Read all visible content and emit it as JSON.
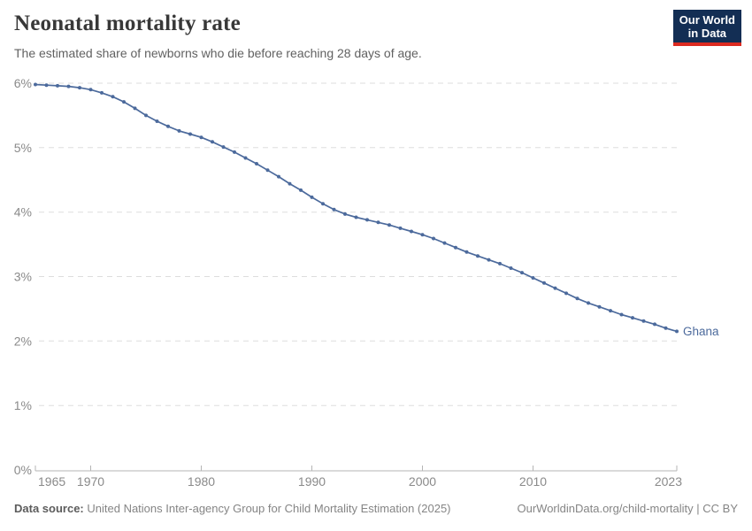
{
  "header": {
    "title": "Neonatal mortality rate",
    "subtitle": "The estimated share of newborns who die before reaching 28 days of age.",
    "logo": {
      "line1": "Our World",
      "line2": "in Data",
      "bg_color": "#132e54",
      "stripe_color": "#dc2a20"
    }
  },
  "chart_data": {
    "type": "line",
    "title": "Neonatal mortality rate",
    "xlabel": "",
    "ylabel": "",
    "ylim": [
      0,
      6
    ],
    "yticks": [
      0,
      1,
      2,
      3,
      4,
      5,
      6
    ],
    "ytick_suffix": "%",
    "xticks": [
      1965,
      1970,
      1980,
      1990,
      2000,
      2010,
      2023
    ],
    "xlim": [
      1965,
      2023
    ],
    "grid": "horizontal-dashed",
    "legend_position": "end-of-line-label",
    "series": [
      {
        "name": "Ghana",
        "color": "#4c6a9c",
        "x": [
          1965,
          1966,
          1967,
          1968,
          1969,
          1970,
          1971,
          1972,
          1973,
          1974,
          1975,
          1976,
          1977,
          1978,
          1979,
          1980,
          1981,
          1982,
          1983,
          1984,
          1985,
          1986,
          1987,
          1988,
          1989,
          1990,
          1991,
          1992,
          1993,
          1994,
          1995,
          1996,
          1997,
          1998,
          1999,
          2000,
          2001,
          2002,
          2003,
          2004,
          2005,
          2006,
          2007,
          2008,
          2009,
          2010,
          2011,
          2012,
          2013,
          2014,
          2015,
          2016,
          2017,
          2018,
          2019,
          2020,
          2021,
          2022,
          2023
        ],
        "values": [
          5.98,
          5.97,
          5.96,
          5.95,
          5.93,
          5.9,
          5.85,
          5.79,
          5.71,
          5.61,
          5.5,
          5.41,
          5.33,
          5.26,
          5.21,
          5.16,
          5.09,
          5.01,
          4.93,
          4.84,
          4.75,
          4.65,
          4.55,
          4.44,
          4.34,
          4.23,
          4.13,
          4.04,
          3.97,
          3.92,
          3.88,
          3.84,
          3.8,
          3.75,
          3.7,
          3.65,
          3.59,
          3.52,
          3.45,
          3.38,
          3.32,
          3.26,
          3.2,
          3.13,
          3.06,
          2.98,
          2.9,
          2.82,
          2.74,
          2.66,
          2.59,
          2.53,
          2.47,
          2.41,
          2.36,
          2.31,
          2.26,
          2.2,
          2.15
        ]
      }
    ]
  },
  "footer": {
    "datasource_label": "Data source:",
    "datasource_text": "United Nations Inter-agency Group for Child Mortality Estimation (2025)",
    "right_text": "OurWorldinData.org/child-mortality | CC BY"
  }
}
